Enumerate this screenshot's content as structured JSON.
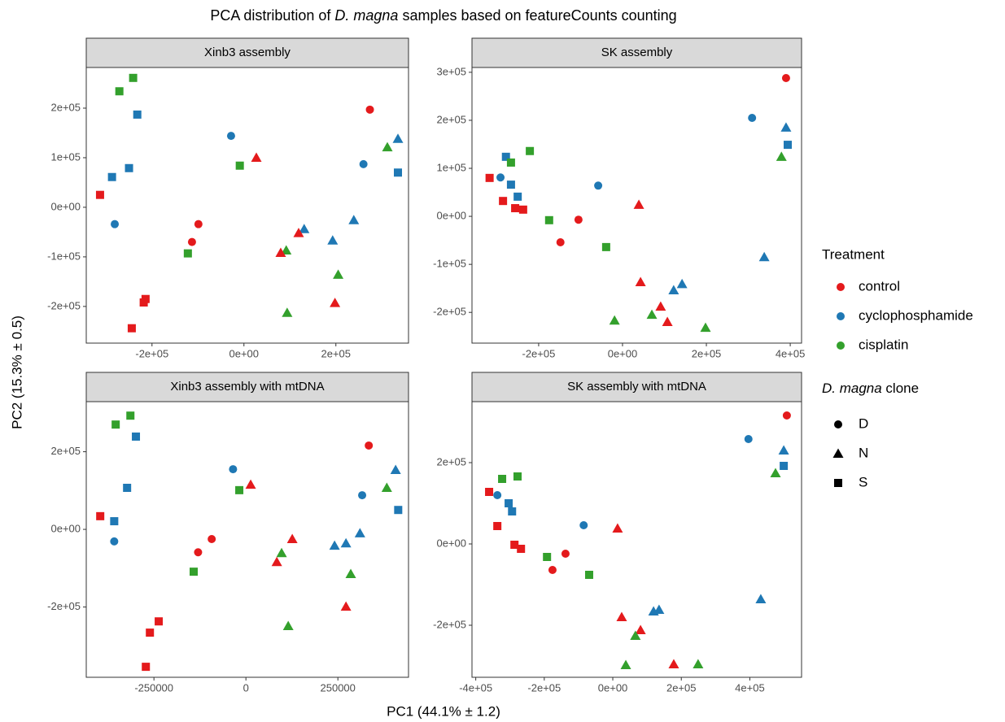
{
  "title_parts": [
    {
      "text": "PCA distribution of "
    },
    {
      "text": "D. magna",
      "italic": true
    },
    {
      "text": " samples based on featureCounts counting"
    }
  ],
  "x_label": "PC1 (44.1% ± 1.2)",
  "y_label": "PC2 (15.3% ± 0.5)",
  "legend": {
    "treatment_title": "Treatment",
    "treatments": [
      {
        "name": "control",
        "color": "#e41a1c"
      },
      {
        "name": "cyclophosphamide",
        "color": "#1f78b4"
      },
      {
        "name": "cisplatin",
        "color": "#33a02c"
      }
    ],
    "clone_title_parts": [
      {
        "text": "D. magna",
        "italic": true
      },
      {
        "text": " clone"
      }
    ],
    "clones": [
      {
        "name": "D",
        "shape": "circle"
      },
      {
        "name": "N",
        "shape": "triangle"
      },
      {
        "name": "S",
        "shape": "square"
      }
    ]
  },
  "chart_data": [
    {
      "type": "scatter",
      "title": "Xinb3 assembly",
      "grid": false,
      "xlim": [
        -343000,
        358000
      ],
      "ylim": [
        -274000,
        282000
      ],
      "xticks": [
        {
          "value": -200000,
          "label": "-2e+05"
        },
        {
          "value": 0,
          "label": "0e+00"
        },
        {
          "value": 200000,
          "label": "2e+05"
        }
      ],
      "yticks": [
        {
          "value": -200000,
          "label": "-2e+05"
        },
        {
          "value": -100000,
          "label": "-1e+05"
        },
        {
          "value": 0,
          "label": "0e+00"
        },
        {
          "value": 100000,
          "label": "1e+05"
        },
        {
          "value": 200000,
          "label": "2e+05"
        }
      ],
      "x": [
        274000,
        -313000,
        -271000,
        -241000,
        -232000,
        -287000,
        -250000,
        -281000,
        -28000,
        -9000,
        27000,
        -99000,
        -113000,
        -122000,
        -214000,
        -218000,
        -244000,
        260000,
        312000,
        335000,
        335000,
        239000,
        193000,
        131000,
        119000,
        92000,
        80000,
        205000,
        198000,
        94000
      ],
      "y": [
        197000,
        25000,
        234000,
        261000,
        187000,
        61000,
        79000,
        -34000,
        144000,
        84000,
        100000,
        -34000,
        -70000,
        -93000,
        -185000,
        -192000,
        -244000,
        87000,
        121000,
        138000,
        70000,
        -26000,
        -67000,
        -44000,
        -52000,
        -87000,
        -92000,
        -136000,
        -193000,
        -213000
      ],
      "treatment": [
        0,
        0,
        2,
        2,
        1,
        1,
        1,
        1,
        1,
        2,
        0,
        0,
        0,
        2,
        0,
        0,
        0,
        1,
        2,
        1,
        1,
        1,
        1,
        1,
        0,
        2,
        0,
        2,
        0,
        2
      ],
      "clone": [
        0,
        2,
        2,
        2,
        2,
        2,
        2,
        0,
        0,
        2,
        1,
        0,
        0,
        2,
        2,
        2,
        2,
        0,
        1,
        1,
        2,
        1,
        1,
        1,
        1,
        1,
        1,
        1,
        1,
        1
      ]
    },
    {
      "type": "scatter",
      "title": "SK assembly",
      "grid": false,
      "xlim": [
        -359000,
        427000
      ],
      "ylim": [
        -264000,
        310000
      ],
      "xticks": [
        {
          "value": -200000,
          "label": "-2e+05"
        },
        {
          "value": 0,
          "label": "0e+00"
        },
        {
          "value": 200000,
          "label": "2e+05"
        },
        {
          "value": 400000,
          "label": "4e+05"
        }
      ],
      "yticks": [
        {
          "value": -200000,
          "label": "-2e+05"
        },
        {
          "value": -100000,
          "label": "-1e+05"
        },
        {
          "value": 0,
          "label": "0e+00"
        },
        {
          "value": 100000,
          "label": "1e+05"
        },
        {
          "value": 200000,
          "label": "2e+05"
        },
        {
          "value": 300000,
          "label": "3e+05"
        }
      ],
      "x": [
        390000,
        309000,
        390000,
        394000,
        379000,
        338000,
        -317000,
        -278000,
        -291000,
        -266000,
        -266000,
        -221000,
        -250000,
        -285000,
        -256000,
        -237000,
        -58000,
        -175000,
        -105000,
        -148000,
        -39000,
        39000,
        43000,
        142000,
        122000,
        91000,
        70000,
        107000,
        -19000,
        198000
      ],
      "y": [
        288000,
        205000,
        185000,
        149000,
        124000,
        -85000,
        80000,
        124000,
        81000,
        112000,
        66000,
        136000,
        41000,
        32000,
        17000,
        14000,
        64000,
        -8000,
        -7000,
        -54000,
        -64000,
        24000,
        -137000,
        -141000,
        -154000,
        -188000,
        -205000,
        -220000,
        -217000,
        -232000
      ],
      "treatment": [
        0,
        1,
        1,
        1,
        2,
        1,
        0,
        1,
        1,
        2,
        1,
        2,
        1,
        0,
        0,
        0,
        1,
        2,
        0,
        0,
        2,
        0,
        0,
        1,
        1,
        0,
        2,
        0,
        2,
        2
      ],
      "clone": [
        0,
        0,
        1,
        2,
        1,
        1,
        2,
        2,
        0,
        2,
        2,
        2,
        2,
        2,
        2,
        2,
        0,
        2,
        0,
        0,
        2,
        1,
        1,
        1,
        1,
        1,
        1,
        1,
        1,
        1
      ]
    },
    {
      "type": "scatter",
      "title": "Xinb3 assembly with mtDNA",
      "grid": false,
      "xlim": [
        -434000,
        442000
      ],
      "ylim": [
        -381000,
        329000
      ],
      "xticks": [
        -250000,
        0,
        250000
      ],
      "yticks": [
        {
          "value": -200000,
          "label": "-2e+05"
        },
        {
          "value": 0,
          "label": "0e+00"
        },
        {
          "value": 200000,
          "label": "2e+05"
        }
      ],
      "x": [
        334000,
        -354000,
        -314000,
        -299000,
        -323000,
        -396000,
        -358000,
        -358000,
        -35000,
        -18000,
        13000,
        -93000,
        -130000,
        -142000,
        -237000,
        -261000,
        -272000,
        316000,
        383000,
        407000,
        414000,
        310000,
        272000,
        241000,
        126000,
        97000,
        84000,
        285000,
        272000,
        115000
      ],
      "y": [
        216000,
        270000,
        293000,
        239000,
        107000,
        34000,
        21000,
        -31000,
        155000,
        101000,
        115000,
        -25000,
        -59000,
        -109000,
        -237000,
        -266000,
        -354000,
        88000,
        107000,
        153000,
        50000,
        -10000,
        -36000,
        -42000,
        -25000,
        -61000,
        -84000,
        -115000,
        -199000,
        -249000
      ],
      "treatment": [
        0,
        2,
        2,
        1,
        1,
        0,
        1,
        1,
        1,
        2,
        0,
        0,
        0,
        2,
        0,
        0,
        0,
        1,
        2,
        1,
        1,
        1,
        1,
        1,
        0,
        2,
        0,
        2,
        0,
        2
      ],
      "clone": [
        0,
        2,
        2,
        2,
        2,
        2,
        2,
        0,
        0,
        2,
        1,
        0,
        0,
        2,
        2,
        2,
        2,
        0,
        1,
        1,
        2,
        1,
        1,
        1,
        1,
        1,
        1,
        1,
        1,
        1
      ]
    },
    {
      "type": "scatter",
      "title": "SK assembly with mtDNA",
      "grid": false,
      "xlim": [
        -411000,
        551000
      ],
      "ylim": [
        -328000,
        350000
      ],
      "xticks": [
        {
          "value": -400000,
          "label": "-4e+05"
        },
        {
          "value": -200000,
          "label": "-2e+05"
        },
        {
          "value": 0,
          "label": "0e+00"
        },
        {
          "value": 200000,
          "label": "2e+05"
        },
        {
          "value": 400000,
          "label": "4e+05"
        }
      ],
      "yticks": [
        {
          "value": -200000,
          "label": "-2e+05"
        },
        {
          "value": 0,
          "label": "0e+00"
        },
        {
          "value": 200000,
          "label": "2e+05"
        }
      ],
      "x": [
        508000,
        396000,
        499000,
        499000,
        475000,
        432000,
        -361000,
        -337000,
        -323000,
        -278000,
        -304000,
        -294000,
        -337000,
        -287000,
        -268000,
        -192000,
        -138000,
        -176000,
        -85000,
        -69000,
        14000,
        26000,
        119000,
        135000,
        81000,
        66000,
        38000,
        178000,
        249000
      ],
      "y": [
        316000,
        258000,
        230000,
        192000,
        174000,
        -136000,
        128000,
        120000,
        160000,
        166000,
        100000,
        80000,
        44000,
        -2000,
        -12000,
        -32000,
        -24000,
        -64000,
        46000,
        -76000,
        38000,
        -180000,
        -166000,
        -162000,
        -212000,
        -226000,
        -298000,
        -296000,
        -296000
      ],
      "treatment": [
        0,
        1,
        1,
        1,
        2,
        1,
        0,
        1,
        2,
        2,
        1,
        1,
        0,
        0,
        0,
        2,
        0,
        0,
        1,
        2,
        0,
        0,
        1,
        1,
        0,
        2,
        2,
        0,
        2
      ],
      "clone": [
        0,
        0,
        1,
        2,
        1,
        1,
        2,
        0,
        2,
        2,
        2,
        2,
        2,
        2,
        2,
        2,
        0,
        0,
        0,
        2,
        1,
        1,
        1,
        1,
        1,
        1,
        1,
        1,
        1
      ]
    }
  ]
}
